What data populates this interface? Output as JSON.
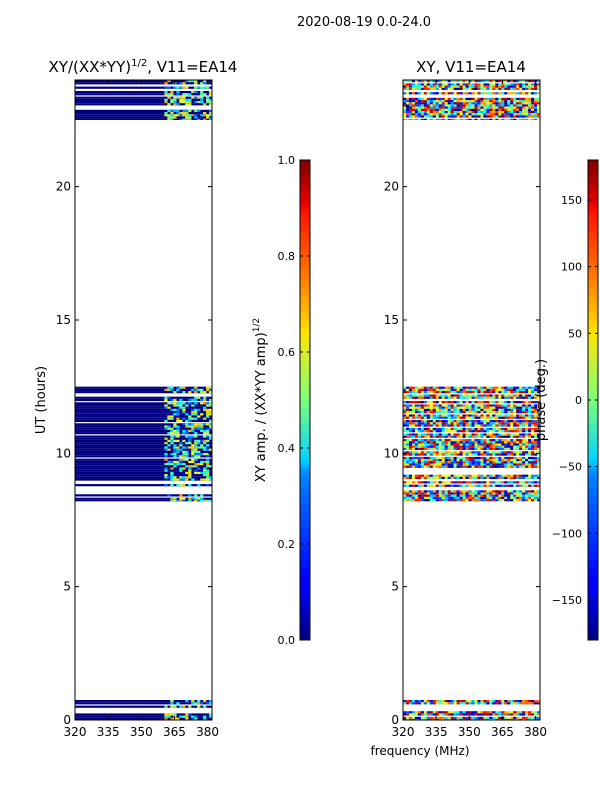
{
  "suptitle": "2020-08-19 0.0-24.0",
  "chart_data": [
    {
      "type": "heatmap",
      "panel": "left",
      "title_base": "XY/(XX*YY)",
      "title_exponent": "1/2",
      "title_suffix": ", V11=EA14",
      "ylabel": "UT (hours)",
      "xlabel": "",
      "xlim": [
        320,
        382
      ],
      "ylim": [
        0,
        24
      ],
      "xticks": [
        320,
        335,
        350,
        365,
        380
      ],
      "yticks": [
        0,
        5,
        10,
        15,
        20
      ],
      "colorbar": {
        "label_base": "XY amp. / (XX*YY amp)",
        "label_exponent": "1/2",
        "range": [
          0.0,
          1.0
        ],
        "ticks": [
          "0.0",
          "0.2",
          "0.4",
          "0.6",
          "0.8",
          "1.0"
        ],
        "tick_values": [
          0.0,
          0.2,
          0.4,
          0.6,
          0.8,
          1.0
        ]
      },
      "data_blocks_hours": [
        [
          0.0,
          0.75
        ],
        [
          8.2,
          12.5
        ],
        [
          22.5,
          24.0
        ]
      ],
      "dominant_value": 0.0,
      "active_band_mhz": [
        360,
        382
      ]
    },
    {
      "type": "heatmap",
      "panel": "right",
      "title": "XY, V11=EA14",
      "ylabel": "",
      "xlabel": "frequency (MHz)",
      "xlim": [
        320,
        382
      ],
      "ylim": [
        0,
        24
      ],
      "xticks": [
        320,
        335,
        350,
        365,
        380
      ],
      "yticks": [
        0,
        5,
        10,
        15,
        20
      ],
      "colorbar": {
        "label": "phase (deg.)",
        "range": [
          -180,
          180
        ],
        "ticks": [
          "−150",
          "−100",
          "−50",
          "0",
          "50",
          "100",
          "150"
        ],
        "tick_values": [
          -150,
          -100,
          -50,
          0,
          50,
          100,
          150
        ]
      },
      "data_blocks_hours": [
        [
          0.0,
          0.75
        ],
        [
          8.2,
          12.5
        ],
        [
          22.5,
          24.0
        ]
      ]
    }
  ]
}
